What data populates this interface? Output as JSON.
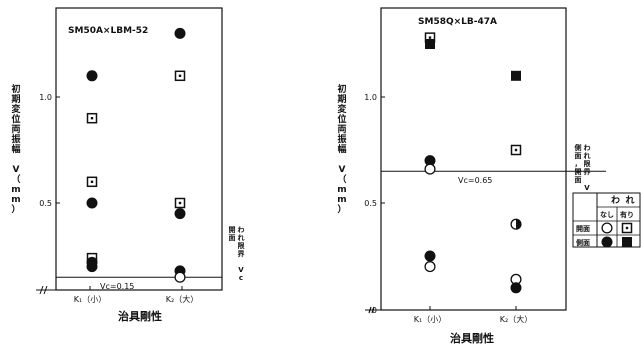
{
  "chart_data": [
    {
      "type": "scatter",
      "title": "SM50A×LBM-52",
      "ylabel": "初期変位両振幅 V（mm）",
      "xlabel": "治具剛性",
      "categories": [
        "K₁（小）",
        "K₂（大）"
      ],
      "ylim": [
        0,
        1.3
      ],
      "yticks": [
        {
          "v": 0.5,
          "label": "0.5"
        },
        {
          "v": 1.0,
          "label": "1.0"
        }
      ],
      "threshold": {
        "value": 0.15,
        "label": "Vc=0.15",
        "side_label": "開面\nわれ限界 Vc"
      },
      "points": [
        {
          "x": 0,
          "y": 1.1,
          "marker": "filled-circle"
        },
        {
          "x": 0,
          "y": 0.9,
          "marker": "dot-square"
        },
        {
          "x": 0,
          "y": 0.6,
          "marker": "dot-square"
        },
        {
          "x": 0,
          "y": 0.5,
          "marker": "filled-circle"
        },
        {
          "x": 0,
          "y": 0.24,
          "marker": "dot-square"
        },
        {
          "x": 0,
          "y": 0.22,
          "marker": "filled-circle"
        },
        {
          "x": 0,
          "y": 0.2,
          "marker": "filled-circle"
        },
        {
          "x": 1,
          "y": 1.3,
          "marker": "filled-circle"
        },
        {
          "x": 1,
          "y": 1.1,
          "marker": "dot-square"
        },
        {
          "x": 1,
          "y": 0.5,
          "marker": "dot-square"
        },
        {
          "x": 1,
          "y": 0.45,
          "marker": "filled-circle"
        },
        {
          "x": 1,
          "y": 0.18,
          "marker": "filled-circle"
        },
        {
          "x": 1,
          "y": 0.15,
          "marker": "open-circle"
        }
      ]
    },
    {
      "type": "scatter",
      "title": "SM58Q×LB-47A",
      "ylabel": "初期変位両振幅 V（mm）",
      "xlabel": "治具剛性",
      "categories": [
        "K₁（小）",
        "K₂（大）"
      ],
      "ylim": [
        0,
        1.3
      ],
      "yticks": [
        {
          "v": 0.5,
          "label": "0.5"
        },
        {
          "v": 1.0,
          "label": "1.0"
        }
      ],
      "threshold": {
        "value": 0.65,
        "label": "Vc=0.65",
        "side_label": "側面，開面\nわれ限界 Vc"
      },
      "points": [
        {
          "x": 0,
          "y": 1.28,
          "marker": "dot-square"
        },
        {
          "x": 0,
          "y": 1.25,
          "marker": "filled-square"
        },
        {
          "x": 0,
          "y": 0.7,
          "marker": "filled-circle"
        },
        {
          "x": 0,
          "y": 0.66,
          "marker": "open-circle"
        },
        {
          "x": 0,
          "y": 0.25,
          "marker": "filled-circle"
        },
        {
          "x": 0,
          "y": 0.2,
          "marker": "open-circle"
        },
        {
          "x": 1,
          "y": 1.1,
          "marker": "filled-square"
        },
        {
          "x": 1,
          "y": 0.75,
          "marker": "dot-square"
        },
        {
          "x": 1,
          "y": 0.4,
          "marker": "half-circle"
        },
        {
          "x": 1,
          "y": 0.14,
          "marker": "open-circle"
        },
        {
          "x": 1,
          "y": 0.1,
          "marker": "filled-circle"
        }
      ]
    }
  ],
  "legend": {
    "header": "われ",
    "columns": [
      "なし",
      "有り"
    ],
    "rows": [
      {
        "label": "開面",
        "markers": [
          "open-circle",
          "dot-square"
        ]
      },
      {
        "label": "側面",
        "markers": [
          "filled-circle",
          "filled-square"
        ]
      }
    ]
  },
  "colors": {
    "ink": "#111111",
    "paper": "#ffffff"
  }
}
